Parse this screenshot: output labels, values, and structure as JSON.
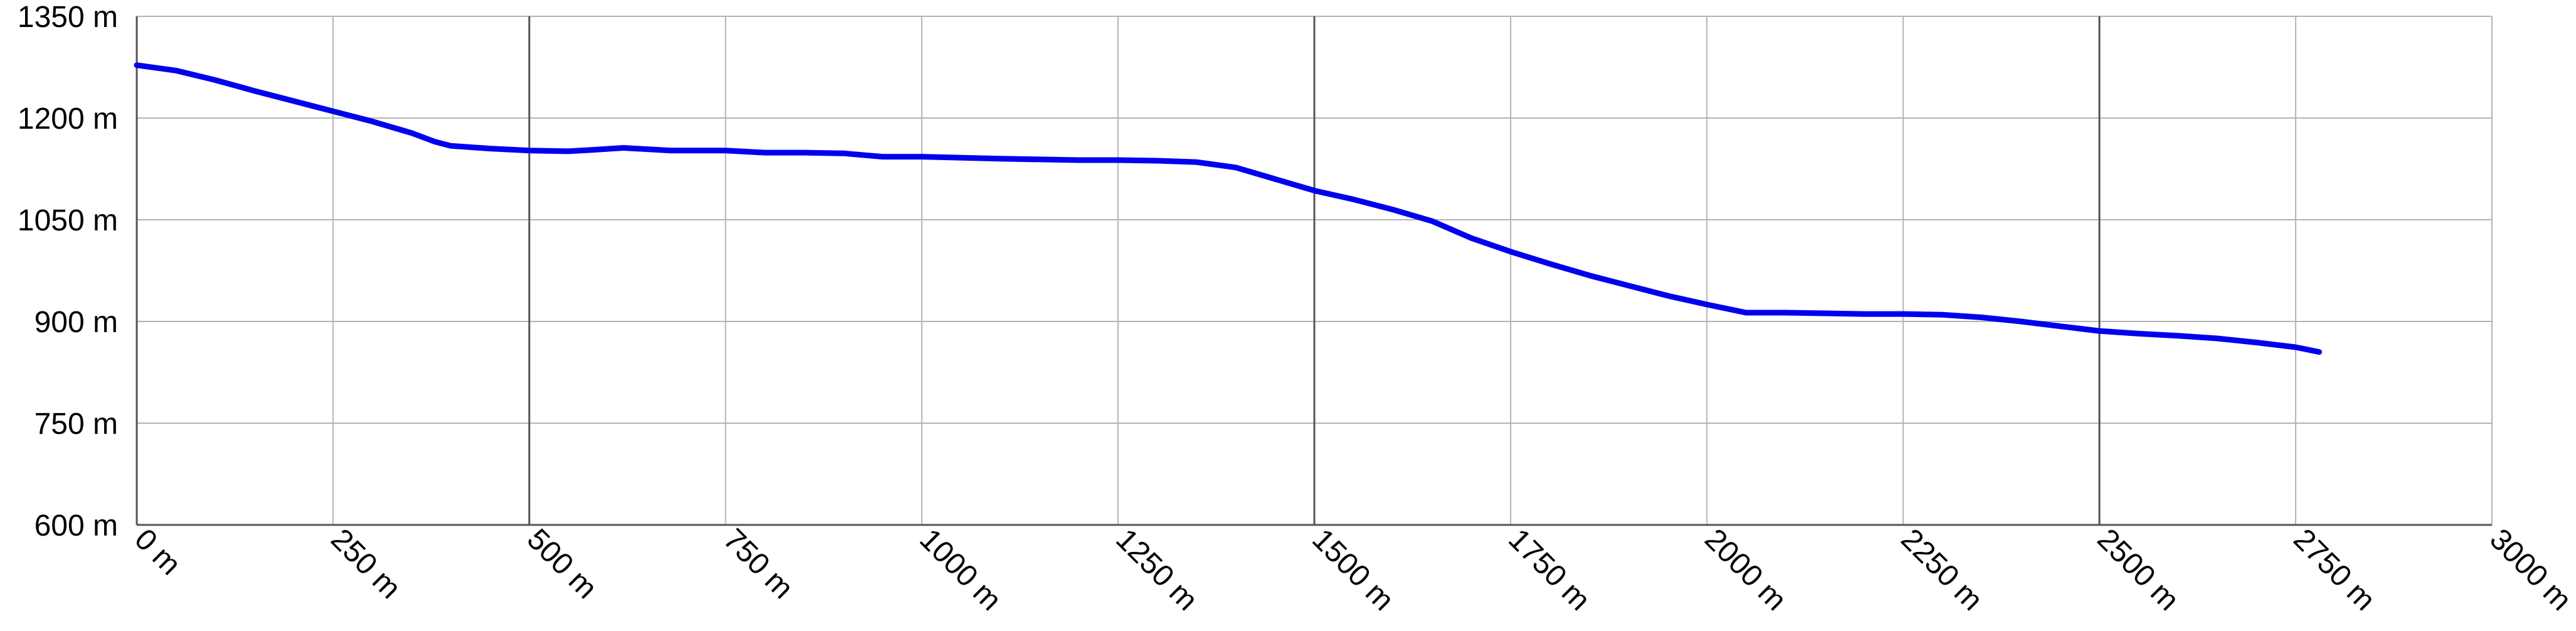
{
  "chart_data": {
    "type": "line",
    "title": "",
    "xlabel": "",
    "ylabel": "",
    "xlim": [
      0,
      3000
    ],
    "ylim": [
      600,
      1350
    ],
    "x_ticks": [
      {
        "value": 0,
        "label": "0 m"
      },
      {
        "value": 250,
        "label": "250 m"
      },
      {
        "value": 500,
        "label": "500 m"
      },
      {
        "value": 750,
        "label": "750 m"
      },
      {
        "value": 1000,
        "label": "1000 m"
      },
      {
        "value": 1250,
        "label": "1250 m"
      },
      {
        "value": 1500,
        "label": "1500 m"
      },
      {
        "value": 1750,
        "label": "1750 m"
      },
      {
        "value": 2000,
        "label": "2000 m"
      },
      {
        "value": 2250,
        "label": "2250 m"
      },
      {
        "value": 2500,
        "label": "2500 m"
      },
      {
        "value": 2750,
        "label": "2750 m"
      },
      {
        "value": 3000,
        "label": "3000 m"
      }
    ],
    "y_ticks": [
      {
        "value": 600,
        "label": "600 m"
      },
      {
        "value": 750,
        "label": "750 m"
      },
      {
        "value": 900,
        "label": "900 m"
      },
      {
        "value": 1050,
        "label": "1050 m"
      },
      {
        "value": 1200,
        "label": "1200 m"
      },
      {
        "value": 1350,
        "label": "1350 m"
      }
    ],
    "major_x_gridlines": [
      500,
      1500,
      2500
    ],
    "grid": true,
    "legend": "none",
    "line_color": "#0000ee",
    "grid_color": "#b3b3b3",
    "major_grid_color": "#555555",
    "series": [
      {
        "x": [
          0,
          50,
          100,
          150,
          200,
          250,
          300,
          350,
          380,
          400,
          450,
          500,
          550,
          580,
          620,
          680,
          750,
          800,
          850,
          900,
          950,
          1000,
          1100,
          1150,
          1200,
          1250,
          1300,
          1350,
          1400,
          1450,
          1500,
          1550,
          1600,
          1650,
          1700,
          1750,
          1800,
          1850,
          1900,
          1950,
          2000,
          2050,
          2100,
          2150,
          2200,
          2250,
          2300,
          2350,
          2400,
          2450,
          2500,
          2550,
          2600,
          2650,
          2700,
          2750,
          2780
        ],
        "y": [
          1278,
          1270,
          1256,
          1240,
          1225,
          1210,
          1195,
          1178,
          1165,
          1159,
          1155,
          1152,
          1151,
          1153,
          1156,
          1152,
          1152,
          1149,
          1149,
          1148,
          1143,
          1143,
          1140,
          1139,
          1138,
          1138,
          1137,
          1135,
          1127,
          1110,
          1093,
          1080,
          1065,
          1048,
          1023,
          1003,
          985,
          968,
          953,
          938,
          925,
          913,
          913,
          912,
          911,
          911,
          910,
          906,
          900,
          893,
          886,
          882,
          879,
          875,
          869,
          862,
          855
        ]
      }
    ]
  }
}
